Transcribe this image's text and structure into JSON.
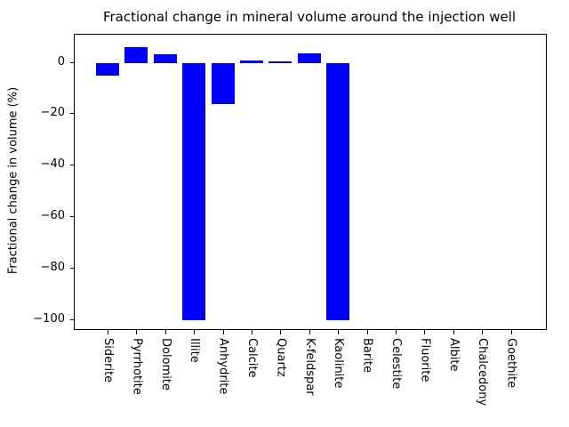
{
  "figure": {
    "title": "Fractional change in mineral volume around the injection well",
    "ylabel": "Fractional change in volume (%)"
  },
  "chart_data": {
    "type": "bar",
    "title": "Fractional change in mineral volume around the injection well",
    "xlabel": "",
    "ylabel": "Fractional change in volume (%)",
    "categories": [
      "Siderite",
      "Pyrrhotite",
      "Dolomite",
      "Illite",
      "Anhydrite",
      "Calcite",
      "Quartz",
      "K-feldspar",
      "Kaolinite",
      "Barite",
      "Celestite",
      "Fluorite",
      "Albite",
      "Chalcedony",
      "Goethite"
    ],
    "values": [
      -5,
      6,
      3.3,
      -100,
      -16,
      1,
      0.4,
      3.5,
      -100,
      0,
      0,
      0,
      0,
      0,
      0
    ],
    "bar_color": "#0000ff",
    "ylim": [
      -103.5,
      10.9
    ],
    "yticks": [
      0,
      -20,
      -40,
      -60,
      -80,
      -100
    ],
    "ytick_labels": [
      "0",
      "−20",
      "−40",
      "−60",
      "−80",
      "−100"
    ],
    "grid": false,
    "legend": null
  }
}
